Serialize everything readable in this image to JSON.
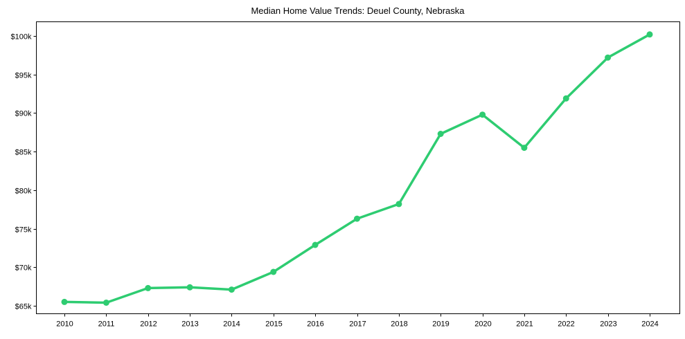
{
  "chart_data": {
    "type": "line",
    "title": "Median Home Value Trends: Deuel County, Nebraska",
    "xlabel": "",
    "ylabel": "",
    "x": [
      2010,
      2011,
      2012,
      2013,
      2014,
      2015,
      2016,
      2017,
      2018,
      2019,
      2020,
      2021,
      2022,
      2023,
      2024
    ],
    "series": [
      {
        "name": "Median Home Value",
        "color": "#2ecc71",
        "values": [
          65500,
          65400,
          67300,
          67400,
          67100,
          69400,
          72900,
          76300,
          78200,
          87300,
          89800,
          85500,
          91900,
          97200,
          100200
        ]
      }
    ],
    "yticks": [
      65000,
      70000,
      75000,
      80000,
      85000,
      90000,
      95000,
      100000
    ],
    "ytick_labels": [
      "$65k",
      "$70k",
      "$75k",
      "$80k",
      "$85k",
      "$90k",
      "$95k",
      "$100k"
    ],
    "xtick_labels": [
      "2010",
      "2011",
      "2012",
      "2013",
      "2014",
      "2015",
      "2016",
      "2017",
      "2018",
      "2019",
      "2020",
      "2021",
      "2022",
      "2023",
      "2024"
    ],
    "ylim": [
      64000,
      101900
    ],
    "grid": false,
    "legend": null
  }
}
